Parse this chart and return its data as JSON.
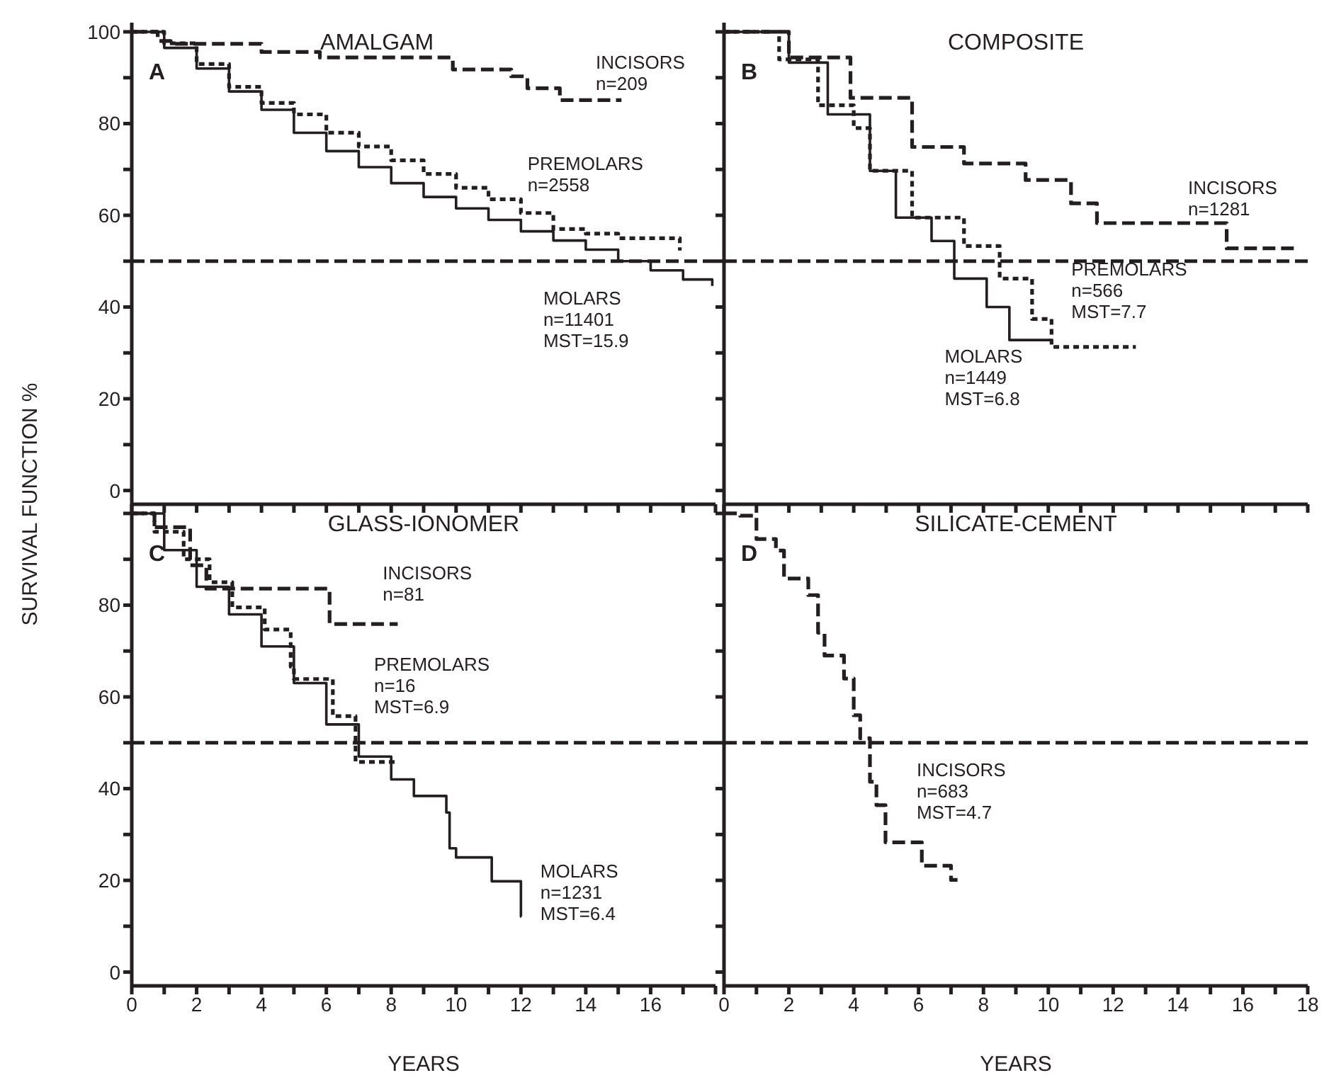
{
  "chart_data": [
    {
      "type": "step",
      "title": "AMALGAM",
      "ylabel": "SURVIVAL FUNCTION %",
      "xlim": [
        0,
        18
      ],
      "ylim": [
        -3,
        102
      ],
      "xticks": [
        0,
        {
          "value": 1,
          "label": null
        },
        2,
        {
          "value": 3,
          "label": null
        },
        4,
        {
          "value": 5,
          "label": null
        },
        6,
        {
          "value": 7,
          "label": null
        },
        8,
        {
          "value": 9,
          "label": null
        },
        10,
        {
          "value": 11,
          "label": null
        },
        12,
        {
          "value": 13,
          "label": null
        },
        14,
        {
          "value": 15,
          "label": null
        },
        16,
        {
          "value": 17,
          "label": null
        },
        18
      ],
      "yticks": [
        0,
        {
          "value": 10,
          "label": null
        },
        20,
        {
          "value": 30,
          "label": null
        },
        40,
        {
          "value": 50,
          "label": null
        },
        60,
        {
          "value": 70,
          "label": null
        },
        80,
        {
          "value": 90,
          "label": null
        },
        100
      ],
      "tick_labels": "y",
      "series": [
        {
          "color": "#231f20",
          "line_style": "dashed",
          "x": [
            0,
            0.8,
            1.2,
            4,
            5.8,
            9.9,
            11.7,
            12.2,
            13.2,
            15.1
          ],
          "values": [
            100,
            98,
            97.4,
            95.6,
            94.4,
            91.8,
            90.3,
            87.7,
            85.1,
            85.1
          ]
        },
        {
          "color": "#231f20",
          "line_style": "dotted",
          "x": [
            0,
            1,
            2,
            3,
            4,
            5,
            6,
            7,
            8,
            9,
            10,
            11,
            12,
            13,
            14,
            15,
            16.9
          ],
          "values": [
            100,
            97.5,
            93,
            88,
            84.5,
            82,
            78,
            75,
            72,
            69,
            66,
            63.5,
            60.5,
            57,
            56,
            55,
            52.3
          ]
        },
        {
          "color": "#231f20",
          "line_style": "solid",
          "x": [
            0,
            1,
            2,
            3,
            4,
            5,
            6,
            7,
            8,
            9,
            10,
            11,
            12,
            13,
            14,
            15,
            16,
            17,
            17.9
          ],
          "values": [
            100,
            96.5,
            92,
            87,
            83,
            78,
            74,
            70.5,
            67,
            64,
            61.5,
            59,
            56.5,
            54.5,
            52.5,
            50,
            48,
            46,
            44.6
          ]
        }
      ],
      "ref_lines": [
        {
          "axis": "y",
          "value": 50,
          "line_style": "dashed"
        }
      ],
      "annotations": [
        "A",
        "INCISORS\nn=209",
        "PREMOLARS\nn=2558",
        "MOLARS\nn=11401\nMST=15.9"
      ]
    },
    {
      "type": "step",
      "title": "COMPOSITE",
      "xlim": [
        0,
        18
      ],
      "ylim": [
        -3,
        102
      ],
      "xticks": [
        0,
        {
          "value": 1,
          "label": null
        },
        2,
        {
          "value": 3,
          "label": null
        },
        4,
        {
          "value": 5,
          "label": null
        },
        6,
        {
          "value": 7,
          "label": null
        },
        8,
        {
          "value": 9,
          "label": null
        },
        10,
        {
          "value": 11,
          "label": null
        },
        12,
        {
          "value": 13,
          "label": null
        },
        14,
        {
          "value": 15,
          "label": null
        },
        16,
        {
          "value": 17,
          "label": null
        },
        18
      ],
      "yticks": [
        0,
        {
          "value": 10,
          "label": null
        },
        20,
        {
          "value": 30,
          "label": null
        },
        40,
        {
          "value": 50,
          "label": null
        },
        60,
        {
          "value": 70,
          "label": null
        },
        80,
        {
          "value": 90,
          "label": null
        },
        100
      ],
      "tick_labels": false,
      "series": [
        {
          "color": "#231f20",
          "line_style": "dashed",
          "x": [
            0,
            2,
            3.9,
            5.8,
            7.4,
            9.3,
            10.7,
            11.5,
            15.5,
            17.7
          ],
          "values": [
            100,
            94.4,
            85.6,
            74.9,
            71.3,
            67.7,
            62.6,
            58.3,
            52.8,
            52.8
          ]
        },
        {
          "color": "#231f20",
          "line_style": "dotted",
          "x": [
            0,
            1.7,
            2.9,
            4,
            4.5,
            5.8,
            7.4,
            8.5,
            9.5,
            10.1,
            12.7
          ],
          "values": [
            100,
            94,
            84,
            79,
            69.7,
            59.5,
            53.3,
            46.2,
            37.4,
            31.3,
            31.3
          ]
        },
        {
          "color": "#231f20",
          "line_style": "solid",
          "x": [
            0,
            2,
            3.2,
            4.5,
            5.3,
            6.4,
            7.1,
            8.1,
            8.8,
            10.1
          ],
          "values": [
            100,
            93.3,
            82,
            69.7,
            59.5,
            54.4,
            46.2,
            40,
            32.8,
            32.8
          ]
        }
      ],
      "ref_lines": [
        {
          "axis": "y",
          "value": 50,
          "line_style": "dashed"
        }
      ],
      "annotations": [
        "B",
        "INCISORS\nn=1281",
        "PREMOLARS\nn=566\nMST=7.7",
        "MOLARS\nn=1449\nMST=6.8"
      ]
    },
    {
      "type": "step",
      "title": "GLASS-IONOMER",
      "xlabel": "YEARS",
      "xlim": [
        0,
        18
      ],
      "ylim": [
        -3,
        102
      ],
      "xticks": [
        0,
        {
          "value": 1,
          "label": null
        },
        2,
        {
          "value": 3,
          "label": null
        },
        4,
        {
          "value": 5,
          "label": null
        },
        6,
        {
          "value": 7,
          "label": null
        },
        8,
        {
          "value": 9,
          "label": null
        },
        10,
        {
          "value": 11,
          "label": null
        },
        12,
        {
          "value": 13,
          "label": null
        },
        14,
        {
          "value": 15,
          "label": null
        },
        16,
        {
          "value": 17,
          "label": null
        },
        {
          "value": 18,
          "label": null
        }
      ],
      "yticks": [
        0,
        {
          "value": 10,
          "label": null
        },
        20,
        {
          "value": 30,
          "label": null
        },
        40,
        {
          "value": 50,
          "label": null
        },
        60,
        {
          "value": 70,
          "label": null
        },
        80,
        {
          "value": 90,
          "label": null
        },
        {
          "value": 100,
          "label": null
        }
      ],
      "series": [
        {
          "color": "#231f20",
          "line_style": "dashed",
          "x": [
            0,
            0.7,
            1.8,
            2.3,
            6.1,
            8.2
          ],
          "values": [
            100,
            97,
            88.7,
            83.6,
            75.9,
            75.9
          ]
        },
        {
          "color": "#231f20",
          "line_style": "dotted",
          "x": [
            0,
            0.7,
            1.6,
            2.4,
            3.1,
            4.1,
            4.9,
            5,
            6.2,
            6.9,
            8.2
          ],
          "values": [
            100,
            96,
            90,
            85,
            79.5,
            74.7,
            66.6,
            63.9,
            55.8,
            45.8,
            45.8
          ]
        },
        {
          "color": "#231f20",
          "line_style": "solid",
          "x": [
            0,
            1,
            2,
            3,
            4,
            5,
            6,
            7,
            8,
            8.7,
            9.7,
            9.8,
            10,
            11.1,
            12,
            12.01
          ],
          "values": [
            100,
            92,
            84,
            78,
            71,
            63,
            54,
            47,
            42,
            38.4,
            34.8,
            27,
            25,
            19.8,
            12.1,
            12.1
          ]
        }
      ],
      "ref_lines": [
        {
          "axis": "y",
          "value": 50,
          "line_style": "dashed"
        }
      ],
      "annotations": [
        "C",
        "INCISORS\nn=81",
        "PREMOLARS\nn=16\nMST=6.9",
        "MOLARS\nn=1231\nMST=6.4"
      ]
    },
    {
      "type": "step",
      "title": "SILICATE-CEMENT",
      "xlabel": "YEARS",
      "xlim": [
        0,
        18
      ],
      "ylim": [
        -3,
        102
      ],
      "xticks": [
        0,
        {
          "value": 1,
          "label": null
        },
        2,
        {
          "value": 3,
          "label": null
        },
        4,
        {
          "value": 5,
          "label": null
        },
        6,
        {
          "value": 7,
          "label": null
        },
        8,
        {
          "value": 9,
          "label": null
        },
        10,
        {
          "value": 11,
          "label": null
        },
        12,
        {
          "value": 13,
          "label": null
        },
        14,
        {
          "value": 15,
          "label": null
        },
        16,
        {
          "value": 17,
          "label": null
        },
        18
      ],
      "yticks": [
        0,
        {
          "value": 10,
          "label": null
        },
        20,
        {
          "value": 30,
          "label": null
        },
        40,
        {
          "value": 50,
          "label": null
        },
        60,
        {
          "value": 70,
          "label": null
        },
        80,
        {
          "value": 90,
          "label": null
        },
        100
      ],
      "tick_labels": "x",
      "series": [
        {
          "color": "#231f20",
          "line_style": "dashed",
          "x": [
            0,
            0.5,
            1,
            1.6,
            1.85,
            2.6,
            2.9,
            3.1,
            3.7,
            4,
            4.2,
            4.5,
            4.7,
            4.98,
            6.1,
            7,
            7.2
          ],
          "values": [
            100,
            99.5,
            94.4,
            91.9,
            85.8,
            82.2,
            74,
            69,
            64,
            56,
            51,
            41.5,
            36.4,
            28.3,
            23.2,
            20.1,
            20.1
          ]
        }
      ],
      "ref_lines": [
        {
          "axis": "y",
          "value": 50,
          "line_style": "dashed"
        }
      ],
      "annotations": [
        "D",
        "INCISORS\nn=683\nMST=4.7"
      ]
    }
  ]
}
